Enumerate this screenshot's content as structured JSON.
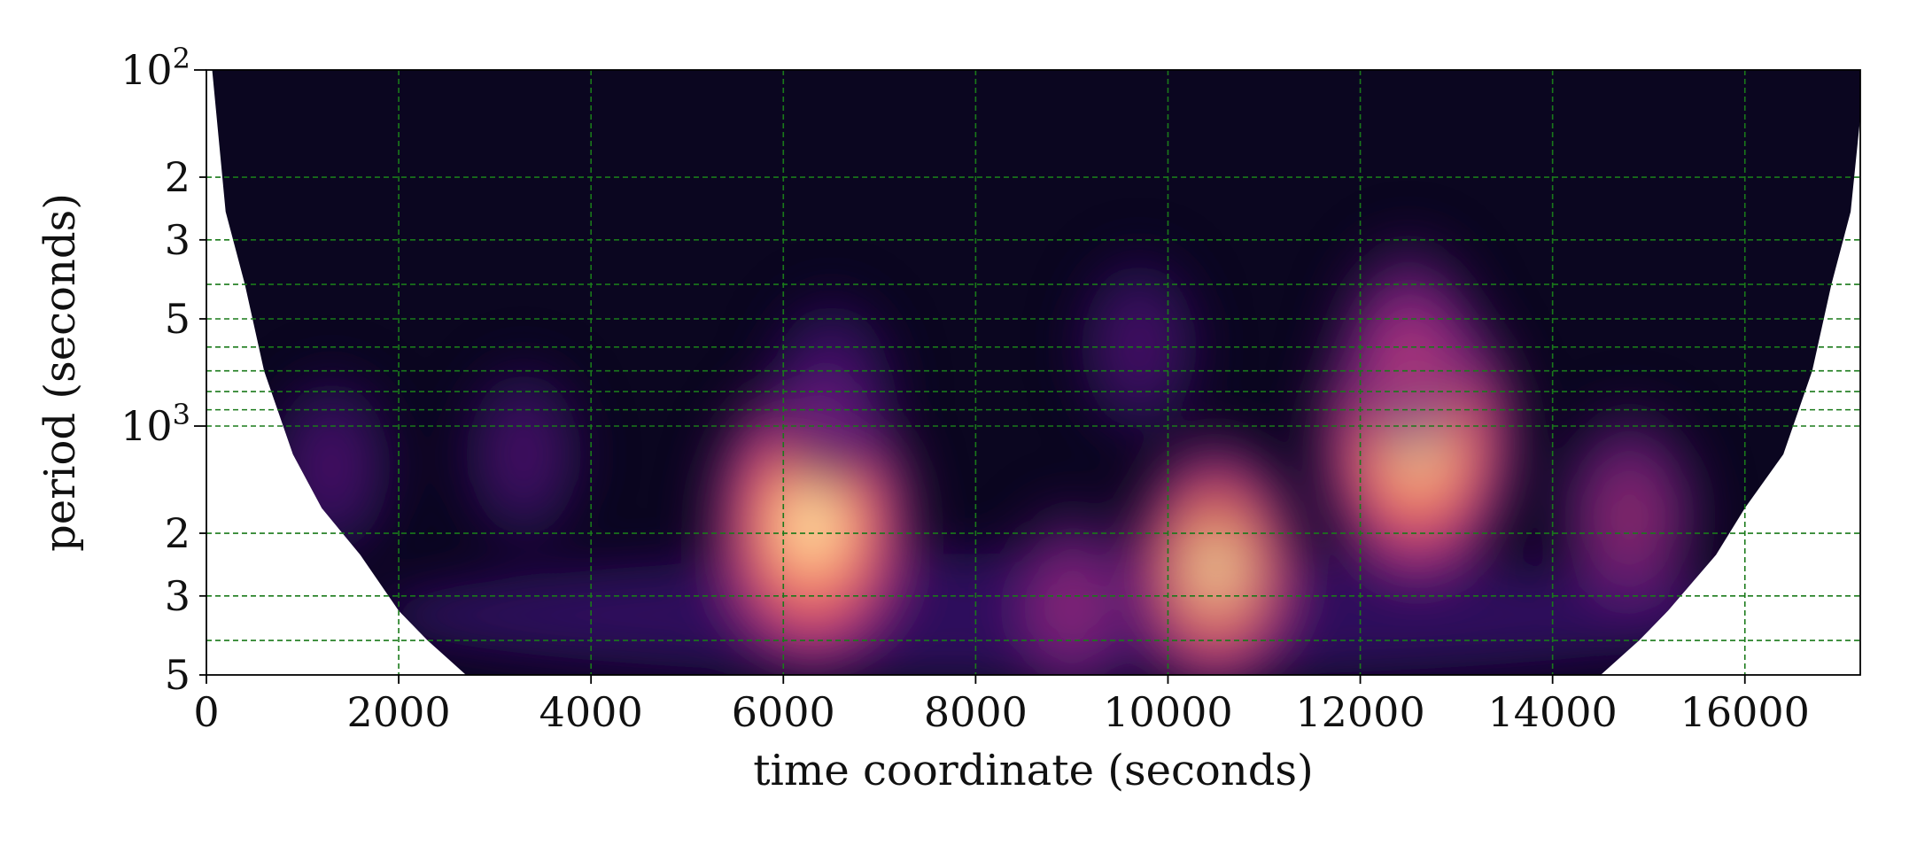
{
  "chart_data": {
    "type": "heatmap",
    "title": "",
    "xlabel": "time coordinate (seconds)",
    "ylabel": "period (seconds)",
    "x_axis": {
      "scale": "linear",
      "lim": [
        0,
        17200
      ],
      "ticks": [
        0,
        2000,
        4000,
        6000,
        8000,
        10000,
        12000,
        14000,
        16000
      ],
      "tick_labels": [
        "0",
        "2000",
        "4000",
        "6000",
        "8000",
        "10000",
        "12000",
        "14000",
        "16000"
      ]
    },
    "y_axis": {
      "scale": "log",
      "inverted": true,
      "lim": [
        100,
        5000
      ],
      "major_ticks": [
        100,
        1000
      ],
      "minor_ticks": [
        200,
        300,
        500,
        2000,
        3000,
        5000
      ],
      "minor_gridlines_extra": [
        400,
        600,
        700,
        800,
        900,
        4000
      ],
      "tick_labels": [
        {
          "value": 100,
          "base": "10",
          "exp": "2"
        },
        {
          "value": 200,
          "text": "2"
        },
        {
          "value": 300,
          "text": "3"
        },
        {
          "value": 500,
          "text": "5"
        },
        {
          "value": 1000,
          "base": "10",
          "exp": "3"
        },
        {
          "value": 2000,
          "text": "2"
        },
        {
          "value": 3000,
          "text": "3"
        },
        {
          "value": 5000,
          "text": "5"
        }
      ]
    },
    "grid": true,
    "grid_color": "#1a7a1a",
    "colormap": "magma",
    "cone_of_influence": [
      [
        60,
        100
      ],
      [
        200,
        250
      ],
      [
        400,
        400
      ],
      [
        600,
        700
      ],
      [
        900,
        1200
      ],
      [
        1200,
        1700
      ],
      [
        1600,
        2300
      ],
      [
        2000,
        3300
      ],
      [
        2300,
        4000
      ],
      [
        2700,
        5000
      ],
      [
        14500,
        5000
      ],
      [
        14900,
        4000
      ],
      [
        15200,
        3300
      ],
      [
        15700,
        2300
      ],
      [
        16000,
        1700
      ],
      [
        16400,
        1200
      ],
      [
        16700,
        700
      ],
      [
        16900,
        400
      ],
      [
        17100,
        250
      ],
      [
        17250,
        100
      ]
    ],
    "power_peaks": [
      {
        "time": 6300,
        "period": 1900,
        "intensity": 1.0
      },
      {
        "time": 12600,
        "period": 1100,
        "intensity": 0.95
      },
      {
        "time": 10500,
        "period": 2500,
        "intensity": 0.72
      },
      {
        "time": 14800,
        "period": 1800,
        "intensity": 0.52
      },
      {
        "time": 6500,
        "period": 800,
        "intensity": 0.35
      },
      {
        "time": 1300,
        "period": 1300,
        "intensity": 0.32
      },
      {
        "time": 3300,
        "period": 1200,
        "intensity": 0.28
      },
      {
        "time": 9700,
        "period": 600,
        "intensity": 0.3
      },
      {
        "time": 9000,
        "period": 3200,
        "intensity": 0.42
      },
      {
        "time": 12500,
        "period": 600,
        "intensity": 0.5
      }
    ]
  }
}
